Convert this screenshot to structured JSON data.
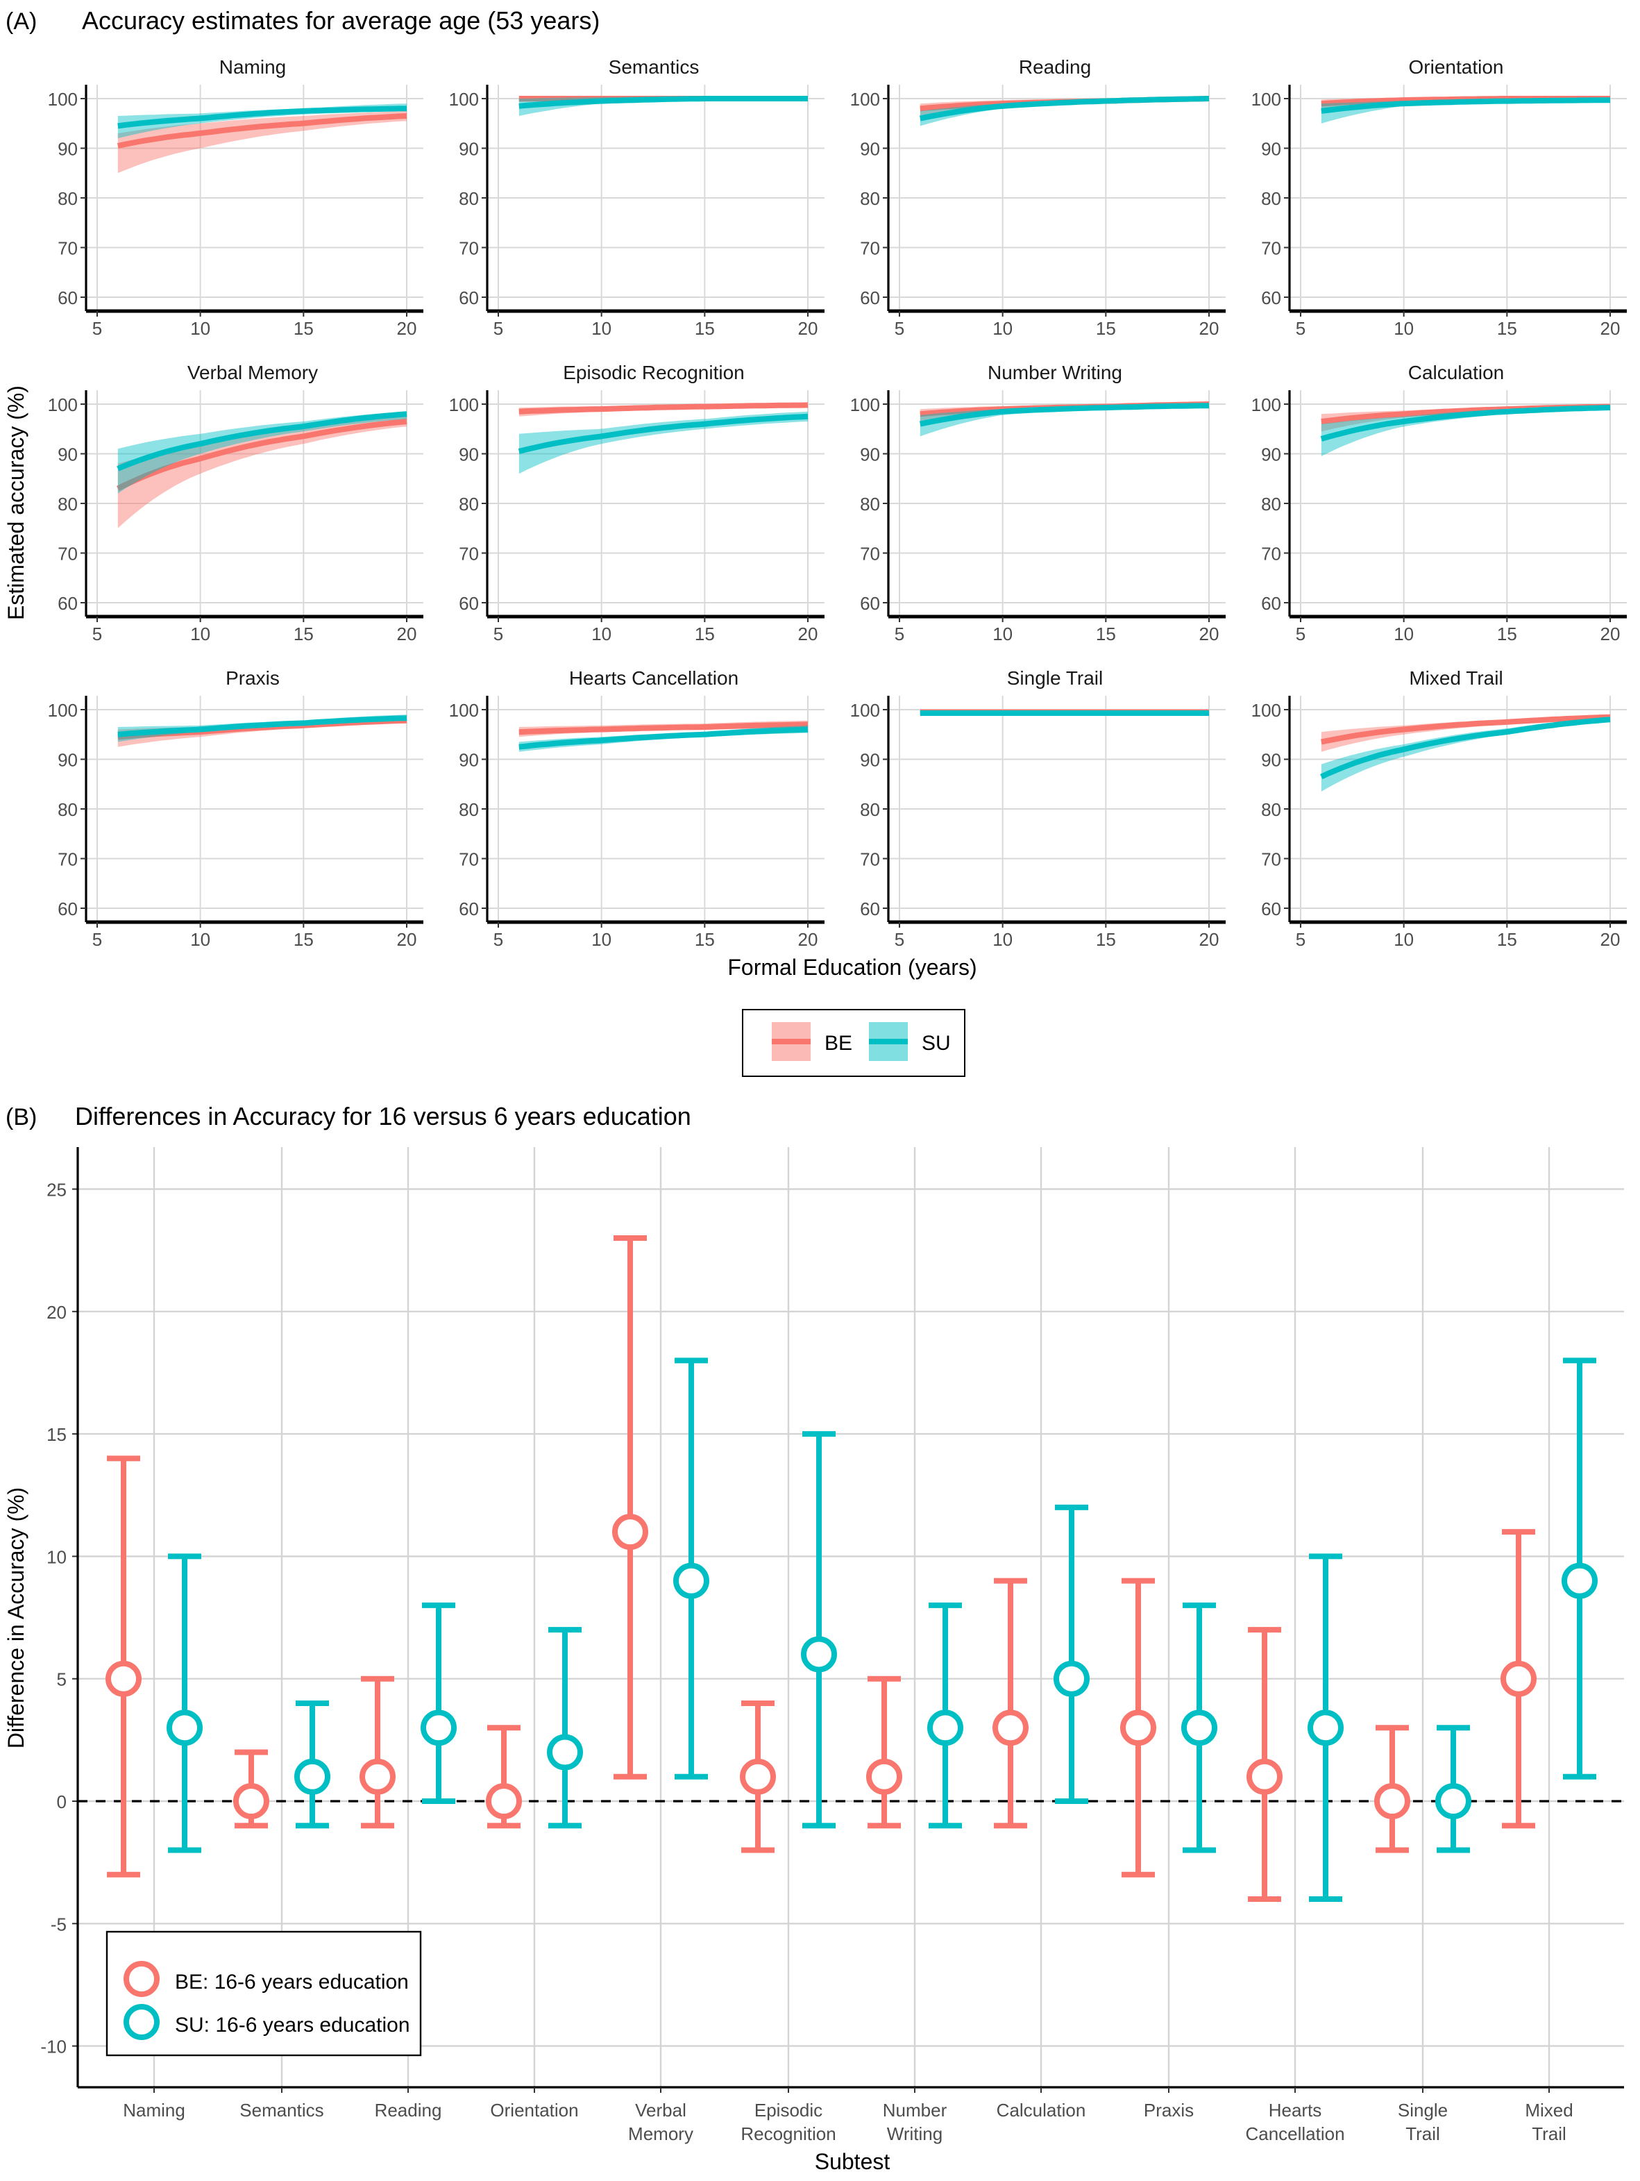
{
  "chart_data": [
    {
      "type": "area",
      "panel_label": "(A)",
      "title": "Accuracy estimates for average age (53 years)",
      "xlabel": "Formal Education (years)",
      "ylabel": "Estimated accuracy (%)",
      "xlim": [
        5,
        20
      ],
      "ylim": [
        60,
        100
      ],
      "xticks": [
        "5",
        "10",
        "15",
        "20"
      ],
      "yticks": [
        "60",
        "70",
        "80",
        "90",
        "100"
      ],
      "grid": true,
      "legend": {
        "placement": "bottom",
        "entries": [
          "BE",
          "SU"
        ]
      },
      "colors": {
        "BE": "#F8766D",
        "SU": "#00BFC4"
      },
      "x": [
        6,
        10,
        15,
        20
      ],
      "facets": [
        {
          "title": "Naming",
          "series": [
            {
              "name": "BE",
              "y": [
                90.5,
                93,
                95,
                96.5
              ],
              "lower": [
                85,
                90,
                93.5,
                95.5
              ],
              "upper": [
                93,
                95,
                96.5,
                97.5
              ]
            },
            {
              "name": "SU",
              "y": [
                94.5,
                96,
                97.5,
                98
              ],
              "lower": [
                92,
                95,
                96.8,
                97.5
              ],
              "upper": [
                96.5,
                97,
                98,
                99
              ]
            }
          ]
        },
        {
          "title": "Semantics",
          "series": [
            {
              "name": "BE",
              "y": [
                100,
                100,
                100,
                100
              ],
              "lower": [
                99.3,
                99.6,
                99.7,
                99.7
              ],
              "upper": [
                100.3,
                100.3,
                100.3,
                100.3
              ]
            },
            {
              "name": "SU",
              "y": [
                98.5,
                99.5,
                100,
                100
              ],
              "lower": [
                96.5,
                99,
                99.5,
                99.5
              ],
              "upper": [
                100,
                100.3,
                100.5,
                100.5
              ]
            }
          ]
        },
        {
          "title": "Reading",
          "series": [
            {
              "name": "BE",
              "y": [
                98,
                99,
                99.5,
                100
              ],
              "lower": [
                96.5,
                98.5,
                99.3,
                99.5
              ],
              "upper": [
                99,
                99.7,
                100,
                100.3
              ]
            },
            {
              "name": "SU",
              "y": [
                96,
                98.5,
                99.5,
                100
              ],
              "lower": [
                94.5,
                98,
                99.2,
                99.5
              ],
              "upper": [
                97.5,
                99,
                99.8,
                100.3
              ]
            }
          ]
        },
        {
          "title": "Orientation",
          "series": [
            {
              "name": "BE",
              "y": [
                99,
                99.7,
                100,
                100
              ],
              "lower": [
                98,
                99.3,
                99.7,
                99.7
              ],
              "upper": [
                99.8,
                100.2,
                100.3,
                100.3
              ]
            },
            {
              "name": "SU",
              "y": [
                97.5,
                99,
                99.5,
                99.7
              ],
              "lower": [
                95,
                98.5,
                99.2,
                99.3
              ],
              "upper": [
                99,
                99.5,
                99.9,
                100
              ]
            }
          ]
        },
        {
          "title": "Verbal Memory",
          "series": [
            {
              "name": "BE",
              "y": [
                83,
                89,
                93.5,
                96.5
              ],
              "lower": [
                75,
                86,
                92,
                95.5
              ],
              "upper": [
                88,
                91.5,
                95,
                97.5
              ]
            },
            {
              "name": "SU",
              "y": [
                87,
                92,
                95.5,
                98
              ],
              "lower": [
                82,
                90,
                94.5,
                97
              ],
              "upper": [
                91,
                94,
                96.5,
                98.5
              ]
            }
          ]
        },
        {
          "title": "Episodic Recognition",
          "series": [
            {
              "name": "BE",
              "y": [
                98.5,
                99,
                99.5,
                99.8
              ],
              "lower": [
                97.5,
                98.5,
                99.2,
                99.4
              ],
              "upper": [
                99.3,
                99.6,
                99.9,
                100.2
              ]
            },
            {
              "name": "SU",
              "y": [
                90.5,
                93.5,
                96,
                97.5
              ],
              "lower": [
                86,
                92,
                95,
                96.5
              ],
              "upper": [
                94,
                95,
                97,
                98.5
              ]
            }
          ]
        },
        {
          "title": "Number Writing",
          "series": [
            {
              "name": "BE",
              "y": [
                98,
                99,
                99.5,
                100
              ],
              "lower": [
                96.5,
                98.5,
                99.2,
                99.6
              ],
              "upper": [
                99,
                99.6,
                100,
                100.3
              ]
            },
            {
              "name": "SU",
              "y": [
                96,
                98.5,
                99.3,
                99.7
              ],
              "lower": [
                93.5,
                97.8,
                99,
                99.4
              ],
              "upper": [
                97.8,
                99,
                99.6,
                100
              ]
            }
          ]
        },
        {
          "title": "Calculation",
          "series": [
            {
              "name": "BE",
              "y": [
                96.5,
                98,
                99,
                99.5
              ],
              "lower": [
                94.5,
                97.3,
                98.6,
                99.2
              ],
              "upper": [
                98,
                98.7,
                99.4,
                99.9
              ]
            },
            {
              "name": "SU",
              "y": [
                93,
                96.5,
                98.5,
                99.3
              ],
              "lower": [
                89.5,
                95.5,
                98,
                99
              ],
              "upper": [
                96,
                97.5,
                99,
                99.7
              ]
            }
          ]
        },
        {
          "title": "Praxis",
          "series": [
            {
              "name": "BE",
              "y": [
                94.5,
                95.5,
                96.8,
                97.8
              ],
              "lower": [
                92.5,
                94.5,
                96.3,
                97.3
              ],
              "upper": [
                96,
                96.5,
                97.3,
                98.3
              ]
            },
            {
              "name": "SU",
              "y": [
                95,
                96,
                97.3,
                98.3
              ],
              "lower": [
                93.5,
                95.5,
                97,
                97.8
              ],
              "upper": [
                96.5,
                96.8,
                97.8,
                99
              ]
            }
          ]
        },
        {
          "title": "Hearts Cancellation",
          "series": [
            {
              "name": "BE",
              "y": [
                95.5,
                96,
                96.5,
                97
              ],
              "lower": [
                94.5,
                95.5,
                96,
                96.3
              ],
              "upper": [
                96.5,
                96.8,
                97.2,
                97.8
              ]
            },
            {
              "name": "SU",
              "y": [
                92.5,
                93.8,
                95,
                96
              ],
              "lower": [
                91.5,
                93,
                94.5,
                95.3
              ],
              "upper": [
                93.5,
                94.5,
                95.5,
                96.8
              ]
            }
          ]
        },
        {
          "title": "Single Trail",
          "series": [
            {
              "name": "BE",
              "y": [
                99.5,
                99.5,
                99.5,
                99.5
              ],
              "lower": [
                99.2,
                99.2,
                99.2,
                99.2
              ],
              "upper": [
                99.8,
                99.8,
                99.8,
                99.8
              ]
            },
            {
              "name": "SU",
              "y": [
                99.3,
                99.3,
                99.3,
                99.3
              ],
              "lower": [
                99,
                99,
                99,
                99
              ],
              "upper": [
                99.6,
                99.6,
                99.6,
                99.6
              ]
            }
          ]
        },
        {
          "title": "Mixed Trail",
          "series": [
            {
              "name": "BE",
              "y": [
                93.5,
                96,
                97.5,
                98.5
              ],
              "lower": [
                91.5,
                95,
                97,
                98
              ],
              "upper": [
                95.5,
                96.8,
                98,
                99
              ]
            },
            {
              "name": "SU",
              "y": [
                86.5,
                92,
                95.5,
                98
              ],
              "lower": [
                83.5,
                90.5,
                95,
                97.5
              ],
              "upper": [
                89,
                93,
                96.2,
                98.5
              ]
            }
          ]
        }
      ]
    },
    {
      "type": "scatter",
      "panel_label": "(B)",
      "title": "Differences in Accuracy for 16 versus 6 years education",
      "xlabel": "Subtest",
      "ylabel": "Difference in Accuracy (%)",
      "ylim": [
        -11,
        26.5
      ],
      "yticks": [
        "-10",
        "-5",
        "0",
        "5",
        "10",
        "15",
        "20",
        "25"
      ],
      "grid": true,
      "reference_line": 0,
      "legend": {
        "placement": "bottom-left",
        "entries": [
          "BE: 16-6 years education",
          "SU: 16-6 years education"
        ]
      },
      "colors": {
        "BE": "#F8766D",
        "SU": "#00BFC4"
      },
      "categories": [
        [
          "Naming"
        ],
        [
          "Semantics"
        ],
        [
          "Reading"
        ],
        [
          "Orientation"
        ],
        [
          "Verbal",
          "Memory"
        ],
        [
          "Episodic",
          "Recognition"
        ],
        [
          "Number",
          "Writing"
        ],
        [
          "Calculation"
        ],
        [
          "Praxis"
        ],
        [
          "Hearts",
          "Cancellation"
        ],
        [
          "Single",
          "Trail"
        ],
        [
          "Mixed",
          "Trail"
        ]
      ],
      "series": [
        {
          "name": "BE",
          "values": [
            5,
            0,
            1,
            0,
            11,
            1,
            1,
            3,
            3,
            1,
            0,
            5
          ],
          "lower": [
            -3,
            -1,
            -1,
            -1,
            1,
            -2,
            -1,
            -1,
            -3,
            -4,
            -2,
            -1
          ],
          "upper": [
            14,
            2,
            5,
            3,
            23,
            4,
            5,
            9,
            9,
            7,
            3,
            11
          ]
        },
        {
          "name": "SU",
          "values": [
            3,
            1,
            3,
            2,
            9,
            6,
            3,
            5,
            3,
            3,
            0,
            9
          ],
          "lower": [
            -2,
            -1,
            0,
            -1,
            1,
            -1,
            -1,
            0,
            -2,
            -4,
            -2,
            1
          ],
          "upper": [
            10,
            4,
            8,
            7,
            18,
            15,
            8,
            12,
            8,
            10,
            3,
            18
          ]
        }
      ]
    }
  ]
}
